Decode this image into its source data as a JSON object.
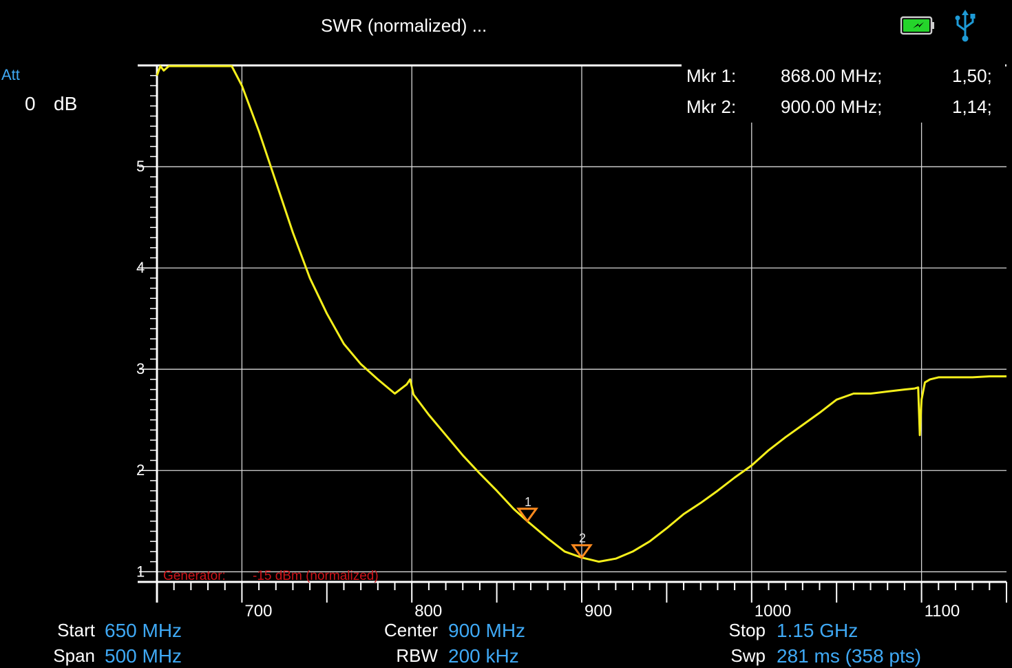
{
  "header": {
    "title": "SWR (normalized) ...",
    "icons": [
      "battery-charging-icon",
      "usb-icon"
    ],
    "battery_color": "#25d42b",
    "usb_color": "#1e9bd7"
  },
  "attenuation": {
    "label": "Att",
    "value": "0",
    "unit": "dB"
  },
  "markers": [
    {
      "id": "1",
      "label": "Mkr 1:",
      "freq": "868.00 MHz;",
      "value": "1,50;"
    },
    {
      "id": "2",
      "label": "Mkr 2:",
      "freq": "900.00 MHz;",
      "value": "1,14;"
    }
  ],
  "generator": {
    "label": "Generator:",
    "value": "-15 dBm (normalized)",
    "color": "#d0141a"
  },
  "footer": {
    "start_label": "Start",
    "start_value": "650 MHz",
    "span_label": "Span",
    "span_value": "500 MHz",
    "center_label": "Center",
    "center_value": "900 MHz",
    "rbw_label": "RBW",
    "rbw_value": "200 kHz",
    "stop_label": "Stop",
    "stop_value": "1.15 GHz",
    "swp_label": "Swp",
    "swp_value": "281  ms (358 pts)"
  },
  "colors": {
    "trace": "#f5ef1b",
    "marker": "#ff8a1e",
    "accent": "#3fa9f5",
    "grid": "#d8d8d8"
  },
  "chart_data": {
    "type": "line",
    "title": "SWR (normalized) ...",
    "xlim": [
      650,
      1150
    ],
    "ylim": [
      0.9,
      6
    ],
    "x_ticks": [
      700,
      800,
      900,
      1000,
      1100
    ],
    "x_tick_labels": [
      "700",
      "800",
      "900",
      "1000",
      "1100"
    ],
    "y_ticks": [
      1,
      2,
      3,
      4,
      5
    ],
    "y_tick_labels": [
      "1",
      "2",
      "3",
      "4",
      "5"
    ],
    "grid": true,
    "series": [
      {
        "x": [
          650,
          652,
          654,
          657,
          660,
          694,
          700,
          710,
          720,
          730,
          740,
          750,
          760,
          770,
          780,
          790,
          797,
          799,
          801,
          810,
          820,
          830,
          840,
          850,
          860,
          868,
          880,
          890,
          900,
          905,
          910,
          920,
          930,
          940,
          950,
          960,
          970,
          980,
          990,
          1000,
          1010,
          1020,
          1030,
          1040,
          1050,
          1060,
          1070,
          1080,
          1090,
          1096,
          1098,
          1099,
          1100,
          1102,
          1105,
          1110,
          1120,
          1130,
          1140,
          1150
        ],
        "values": [
          5.9,
          6.0,
          5.95,
          6.0,
          6.0,
          6.0,
          5.8,
          5.35,
          4.85,
          4.35,
          3.9,
          3.55,
          3.25,
          3.05,
          2.9,
          2.76,
          2.85,
          2.9,
          2.75,
          2.55,
          2.35,
          2.15,
          1.97,
          1.8,
          1.62,
          1.5,
          1.33,
          1.2,
          1.14,
          1.12,
          1.1,
          1.13,
          1.2,
          1.3,
          1.43,
          1.57,
          1.68,
          1.8,
          1.93,
          2.05,
          2.2,
          2.33,
          2.45,
          2.57,
          2.7,
          2.76,
          2.76,
          2.78,
          2.8,
          2.81,
          2.82,
          2.35,
          2.7,
          2.87,
          2.9,
          2.92,
          2.92,
          2.92,
          2.93,
          2.93
        ]
      }
    ],
    "marker_points": [
      {
        "id": "1",
        "x": 868,
        "y": 1.5
      },
      {
        "id": "2",
        "x": 900,
        "y": 1.14
      }
    ]
  }
}
